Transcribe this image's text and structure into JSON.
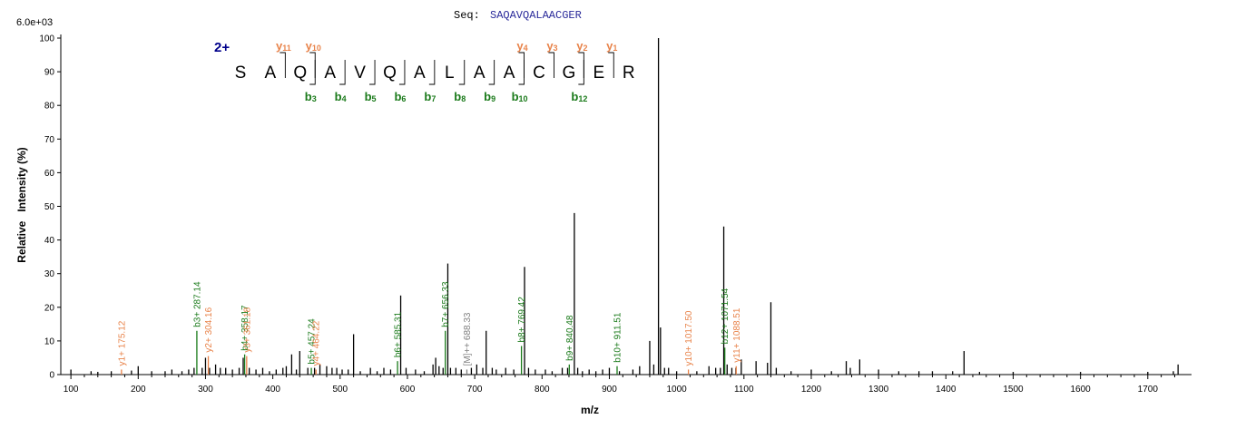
{
  "header": {
    "seq_label": "Seq:",
    "seq_value": "SAQAVQALAACGER",
    "y_scale": "6.0e+03",
    "charge": "2+"
  },
  "colors": {
    "b_ion": "#1a7a1a",
    "y_ion": "#e8834a",
    "precursor": "#808080",
    "charge": "#00008b",
    "peak": "#000000",
    "seq_value": "#2a2a9a"
  },
  "peptide": {
    "letters": [
      "S",
      "A",
      "Q",
      "A",
      "V",
      "Q",
      "A",
      "L",
      "A",
      "A",
      "C",
      "G",
      "E",
      "R"
    ],
    "y_marks": [
      {
        "after": 2,
        "label": "y",
        "sub": "11"
      },
      {
        "after": 3,
        "label": "y",
        "sub": "10"
      },
      {
        "after": 10,
        "label": "y",
        "sub": "4"
      },
      {
        "after": 11,
        "label": "y",
        "sub": "3"
      },
      {
        "after": 12,
        "label": "y",
        "sub": "2"
      },
      {
        "after": 13,
        "label": "y",
        "sub": "1"
      }
    ],
    "b_marks": [
      {
        "after": 3,
        "label": "b",
        "sub": "3"
      },
      {
        "after": 4,
        "label": "b",
        "sub": "4"
      },
      {
        "after": 5,
        "label": "b",
        "sub": "5"
      },
      {
        "after": 6,
        "label": "b",
        "sub": "6"
      },
      {
        "after": 7,
        "label": "b",
        "sub": "7"
      },
      {
        "after": 8,
        "label": "b",
        "sub": "8"
      },
      {
        "after": 9,
        "label": "b",
        "sub": "9"
      },
      {
        "after": 10,
        "label": "b",
        "sub": "10"
      },
      {
        "after": 12,
        "label": "b",
        "sub": "12"
      }
    ]
  },
  "chart_data": {
    "type": "bar",
    "xlabel": "m/z",
    "ylabel": "Relative   Intensity (%)",
    "xlim": [
      85,
      1765
    ],
    "ylim": [
      0,
      100
    ],
    "x_ticks": [
      100,
      200,
      300,
      400,
      500,
      600,
      700,
      800,
      900,
      1000,
      1100,
      1200,
      1300,
      1400,
      1500,
      1600,
      1700
    ],
    "y_ticks": [
      0,
      10,
      20,
      30,
      40,
      50,
      60,
      70,
      80,
      90,
      100
    ],
    "annotated_peaks": [
      {
        "mz": 175.12,
        "intensity": 1.5,
        "label": "y1+ 175.12",
        "ion": "y"
      },
      {
        "mz": 287.14,
        "intensity": 13,
        "label": "b3+ 287.14",
        "ion": "b"
      },
      {
        "mz": 304.16,
        "intensity": 5.5,
        "label": "y2+ 304.16",
        "ion": "y"
      },
      {
        "mz": 358.17,
        "intensity": 6,
        "label": "b4+ 358.17",
        "ion": "b"
      },
      {
        "mz": 361.18,
        "intensity": 5.5,
        "label": "y3+ 361.18",
        "ion": "y"
      },
      {
        "mz": 457.24,
        "intensity": 2,
        "label": "b5+ 457.24",
        "ion": "b"
      },
      {
        "mz": 464.22,
        "intensity": 1.5,
        "label": "y4+ 464.22",
        "ion": "y"
      },
      {
        "mz": 585.31,
        "intensity": 4,
        "label": "b6+ 585.31",
        "ion": "b"
      },
      {
        "mz": 656.33,
        "intensity": 13,
        "label": "b7+ 656.33",
        "ion": "b"
      },
      {
        "mz": 688.33,
        "intensity": 1.5,
        "label": "[M]++ 688.33",
        "ion": "p"
      },
      {
        "mz": 769.42,
        "intensity": 8.5,
        "label": "b8+ 769.42",
        "ion": "b"
      },
      {
        "mz": 840.48,
        "intensity": 3,
        "label": "b9+ 840.48",
        "ion": "b"
      },
      {
        "mz": 911.51,
        "intensity": 2.5,
        "label": "b10+ 911.51",
        "ion": "b"
      },
      {
        "mz": 1017.5,
        "intensity": 1.5,
        "label": "y10+ 1017.50",
        "ion": "y"
      },
      {
        "mz": 1071.54,
        "intensity": 8,
        "label": "b12+ 1071.54",
        "ion": "b"
      },
      {
        "mz": 1088.51,
        "intensity": 2.5,
        "label": "y11+ 1088.51",
        "ion": "y"
      }
    ],
    "peaks": [
      [
        100,
        1.5
      ],
      [
        130,
        1
      ],
      [
        140,
        0.8
      ],
      [
        160,
        1
      ],
      [
        190,
        1.2
      ],
      [
        200,
        2.5
      ],
      [
        220,
        1
      ],
      [
        240,
        1
      ],
      [
        250,
        1.5
      ],
      [
        265,
        1
      ],
      [
        275,
        1.5
      ],
      [
        283,
        2
      ],
      [
        295,
        2
      ],
      [
        300,
        5
      ],
      [
        306,
        2
      ],
      [
        315,
        3
      ],
      [
        322,
        2
      ],
      [
        330,
        2
      ],
      [
        340,
        1.5
      ],
      [
        350,
        2
      ],
      [
        356,
        5
      ],
      [
        365,
        2
      ],
      [
        375,
        1.5
      ],
      [
        385,
        2
      ],
      [
        395,
        1
      ],
      [
        405,
        1.5
      ],
      [
        415,
        2
      ],
      [
        420,
        2.5
      ],
      [
        428,
        6
      ],
      [
        435,
        1.5
      ],
      [
        440,
        7
      ],
      [
        452,
        2
      ],
      [
        462,
        2
      ],
      [
        470,
        3
      ],
      [
        480,
        2.5
      ],
      [
        488,
        2
      ],
      [
        495,
        2
      ],
      [
        503,
        1.5
      ],
      [
        512,
        1.5
      ],
      [
        520,
        12
      ],
      [
        530,
        1
      ],
      [
        545,
        2
      ],
      [
        555,
        1
      ],
      [
        565,
        2
      ],
      [
        575,
        1.5
      ],
      [
        590,
        23.5
      ],
      [
        598,
        2
      ],
      [
        612,
        1.5
      ],
      [
        625,
        1
      ],
      [
        638,
        3
      ],
      [
        642,
        5
      ],
      [
        647,
        2.5
      ],
      [
        653,
        2
      ],
      [
        660,
        33
      ],
      [
        664,
        2
      ],
      [
        672,
        2
      ],
      [
        680,
        1.5
      ],
      [
        695,
        2
      ],
      [
        703,
        3
      ],
      [
        712,
        2
      ],
      [
        717,
        13
      ],
      [
        726,
        2
      ],
      [
        732,
        1.5
      ],
      [
        746,
        2
      ],
      [
        758,
        1.5
      ],
      [
        774,
        32
      ],
      [
        780,
        2
      ],
      [
        790,
        1.5
      ],
      [
        805,
        1.5
      ],
      [
        815,
        1
      ],
      [
        830,
        2
      ],
      [
        838,
        2
      ],
      [
        848,
        48
      ],
      [
        853,
        2
      ],
      [
        860,
        1
      ],
      [
        870,
        1.5
      ],
      [
        880,
        1
      ],
      [
        890,
        1.5
      ],
      [
        900,
        2
      ],
      [
        915,
        1
      ],
      [
        935,
        1.5
      ],
      [
        945,
        2.5
      ],
      [
        960,
        10
      ],
      [
        966,
        3
      ],
      [
        973,
        100
      ],
      [
        976,
        14
      ],
      [
        982,
        2
      ],
      [
        988,
        2
      ],
      [
        1000,
        1
      ],
      [
        1030,
        1
      ],
      [
        1048,
        2.5
      ],
      [
        1058,
        2
      ],
      [
        1065,
        2
      ],
      [
        1070,
        44
      ],
      [
        1075,
        3
      ],
      [
        1082,
        2
      ],
      [
        1088,
        2
      ],
      [
        1096,
        4.5
      ],
      [
        1118,
        4
      ],
      [
        1135,
        3.5
      ],
      [
        1140,
        21.5
      ],
      [
        1148,
        2
      ],
      [
        1170,
        1
      ],
      [
        1200,
        1.5
      ],
      [
        1230,
        1
      ],
      [
        1252,
        4
      ],
      [
        1258,
        2
      ],
      [
        1272,
        4.5
      ],
      [
        1300,
        1.5
      ],
      [
        1330,
        1
      ],
      [
        1360,
        1
      ],
      [
        1380,
        1
      ],
      [
        1410,
        1
      ],
      [
        1427,
        7
      ],
      [
        1450,
        0.8
      ],
      [
        1500,
        0.8
      ],
      [
        1600,
        0.8
      ],
      [
        1700,
        0.8
      ],
      [
        1738,
        1
      ],
      [
        1745,
        3
      ]
    ]
  }
}
